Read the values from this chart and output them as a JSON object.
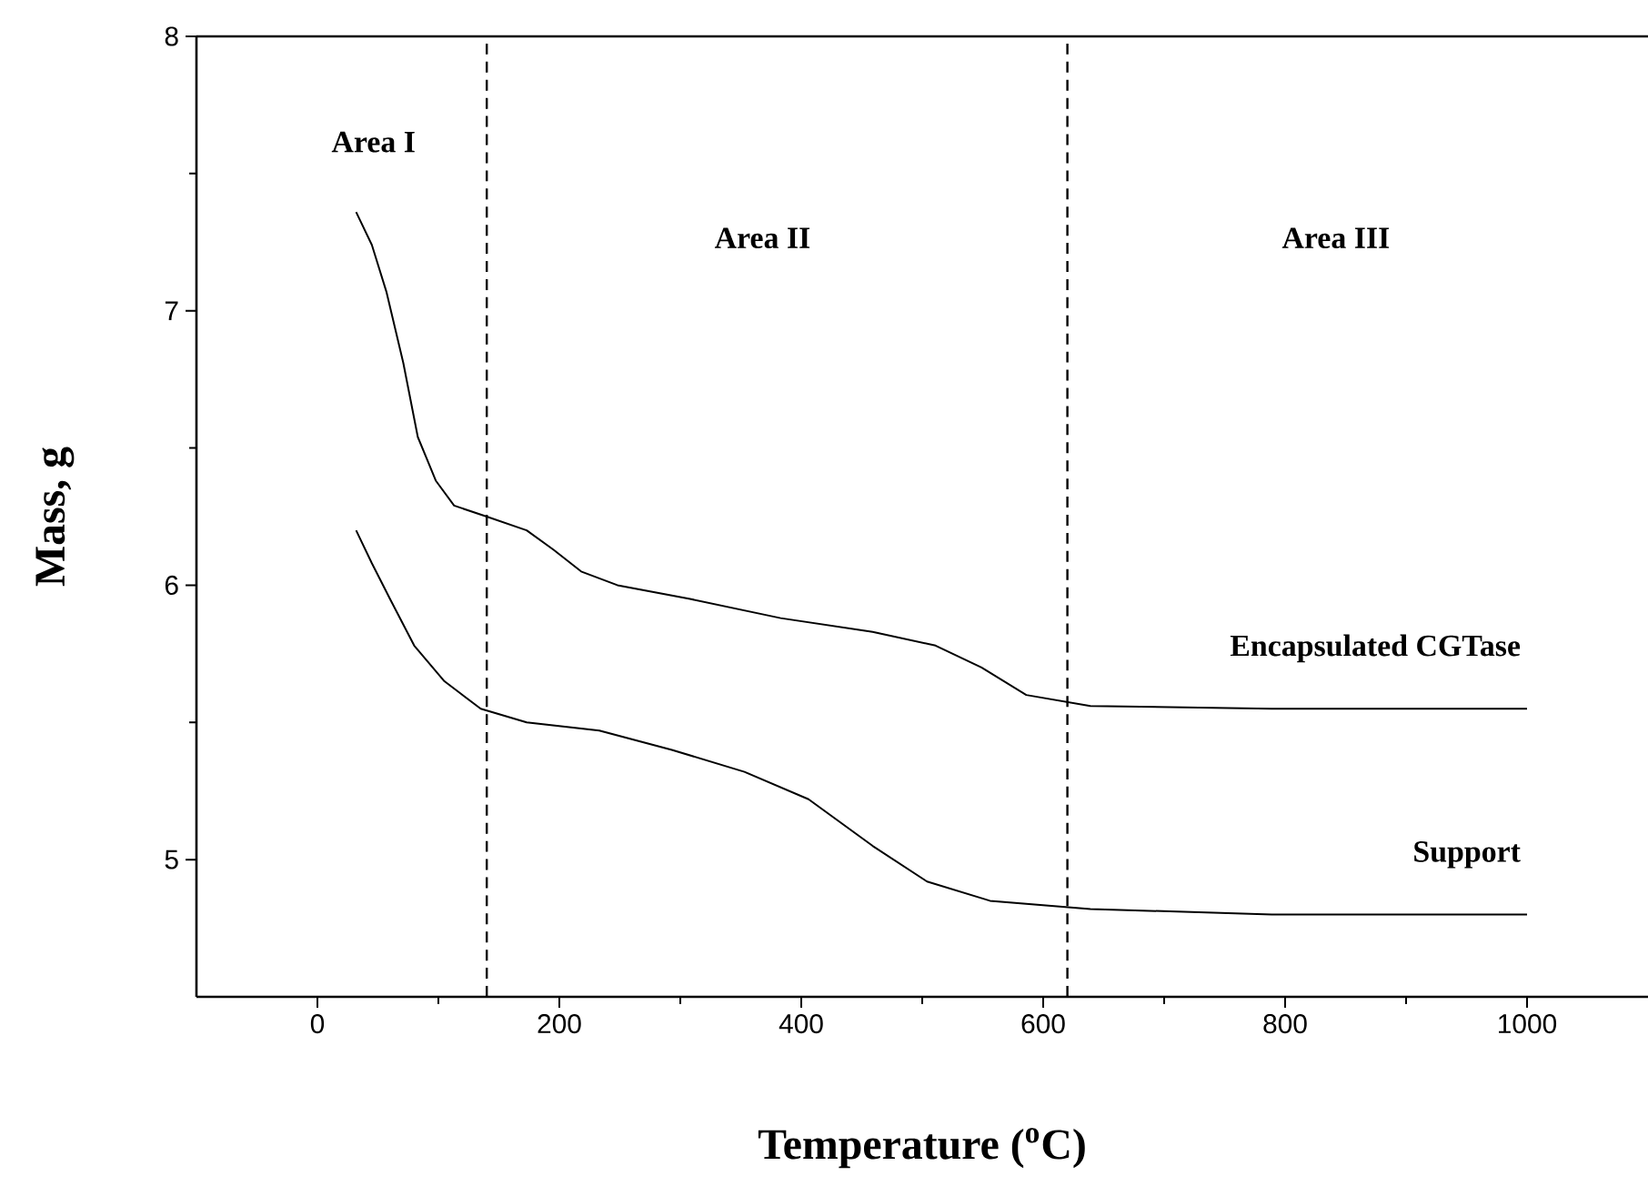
{
  "chart_data": {
    "type": "line",
    "xlabel": "Temperature ($^{o}$C)",
    "ylabel": "Mass, g",
    "xlim": [
      -100,
      1100
    ],
    "xticks": [
      0,
      200,
      400,
      600,
      800,
      1000
    ],
    "ylim": [
      4.5,
      8
    ],
    "yticks": [
      5,
      6,
      7,
      8
    ],
    "series": [
      {
        "name": "Encapsulated CGTase",
        "color": "#000000",
        "x": [
          32,
          45,
          57,
          71,
          83,
          98,
          113,
          140,
          173,
          195,
          218,
          248,
          308,
          383,
          459,
          511,
          549,
          586,
          639,
          789,
          1000
        ],
        "values": [
          7.36,
          7.24,
          7.07,
          6.81,
          6.54,
          6.38,
          6.29,
          6.25,
          6.2,
          6.13,
          6.05,
          6.0,
          5.95,
          5.88,
          5.83,
          5.78,
          5.7,
          5.6,
          5.56,
          5.55,
          5.55
        ]
      },
      {
        "name": "Support",
        "color": "#000000",
        "x": [
          32,
          45,
          60,
          80,
          105,
          135,
          173,
          233,
          293,
          353,
          406,
          459,
          504,
          556,
          639,
          789,
          1000
        ],
        "values": [
          6.2,
          6.08,
          5.95,
          5.78,
          5.65,
          5.55,
          5.5,
          5.47,
          5.4,
          5.32,
          5.22,
          5.05,
          4.92,
          4.85,
          4.82,
          4.8,
          4.8
        ]
      }
    ],
    "ref_lines": [
      {
        "axis": "x",
        "value": 140,
        "color": "#000000",
        "line_style": "dashed"
      },
      {
        "axis": "x",
        "value": 620,
        "color": "#000000",
        "line_style": "dashed"
      }
    ],
    "annotations": [
      "Area I",
      "Area II",
      "Area III"
    ],
    "grid": false,
    "legend": false
  }
}
